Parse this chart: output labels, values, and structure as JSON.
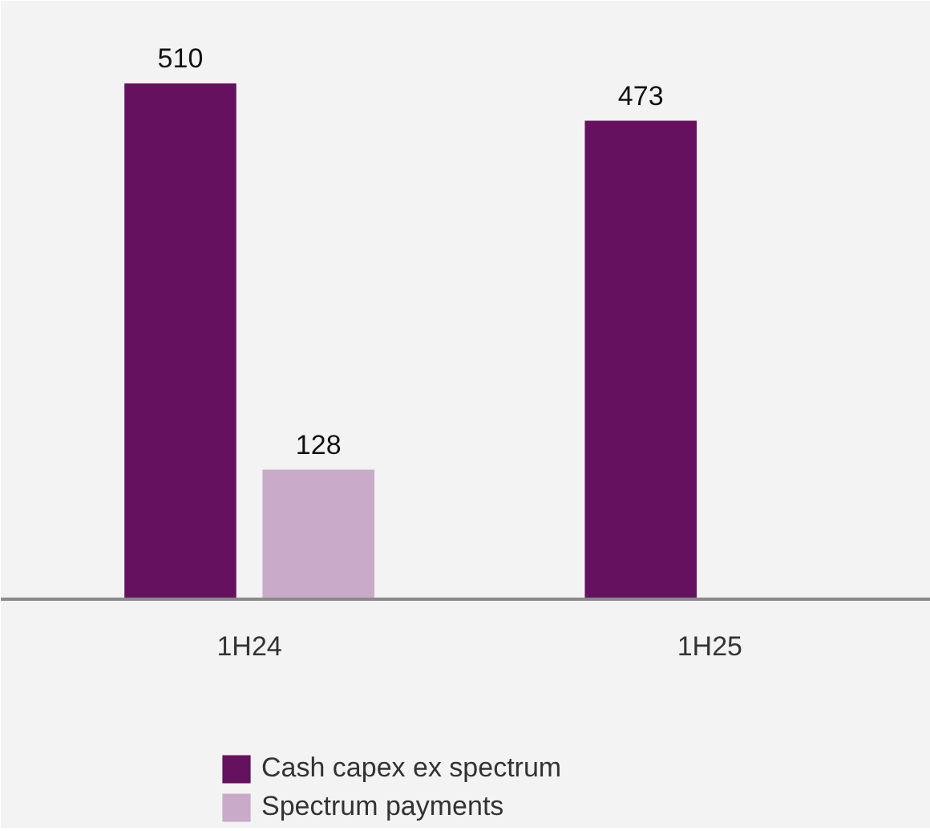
{
  "chart_data": {
    "type": "bar",
    "categories": [
      "1H24",
      "1H25"
    ],
    "series": [
      {
        "name": "Cash capex ex spectrum",
        "color": "#661060",
        "values": [
          510,
          473
        ]
      },
      {
        "name": "Spectrum payments",
        "color": "#c9aac9",
        "values": [
          128,
          null
        ]
      }
    ],
    "data_labels": true,
    "grid": false,
    "legend": "bottom",
    "tick_labels": "x"
  }
}
